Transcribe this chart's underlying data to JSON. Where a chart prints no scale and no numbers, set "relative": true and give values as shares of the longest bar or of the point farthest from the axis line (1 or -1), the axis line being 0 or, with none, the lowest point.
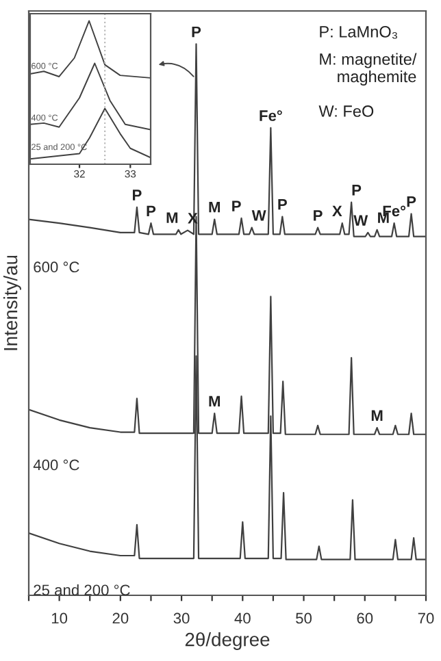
{
  "chart_data": [
    {
      "type": "line",
      "relative": true,
      "xlabel": "2θ/degree",
      "ylabel": "Intensity/au",
      "xlim": [
        5,
        70
      ],
      "xticks": [
        {
          "value": 5,
          "label": null
        },
        10,
        {
          "value": 15,
          "label": null
        },
        20,
        {
          "value": 25,
          "label": null
        },
        30,
        {
          "value": 35,
          "label": null
        },
        40,
        {
          "value": 45,
          "label": null
        },
        50,
        {
          "value": 55,
          "label": null
        },
        60,
        {
          "value": 65,
          "label": null
        },
        70
      ],
      "series": [
        {
          "name": "600 °C",
          "color": "#404040",
          "x": [
            5,
            10,
            15,
            20,
            22.3,
            22.7,
            23.1,
            24.6,
            25,
            25.4,
            29.1,
            29.5,
            29.9,
            31,
            32.0,
            32.4,
            32.8,
            35.0,
            35.4,
            35.8,
            39.4,
            39.8,
            40.2,
            41.1,
            41.5,
            41.9,
            44.2,
            44.6,
            45.0,
            46.1,
            46.5,
            46.9,
            51.9,
            52.3,
            52.7,
            55.9,
            56.3,
            56.7,
            57.4,
            57.8,
            58.2,
            60.1,
            60.5,
            60.9,
            61.6,
            62,
            62.4,
            64.4,
            64.8,
            65.2,
            67.2,
            67.6,
            68,
            70
          ],
          "values": [
            0.682,
            0.675,
            0.667,
            0.658,
            0.658,
            0.704,
            0.658,
            0.655,
            0.675,
            0.655,
            0.655,
            0.663,
            0.655,
            0.662,
            0.655,
            1.0,
            0.655,
            0.655,
            0.682,
            0.655,
            0.655,
            0.684,
            0.655,
            0.655,
            0.667,
            0.655,
            0.655,
            0.848,
            0.655,
            0.655,
            0.687,
            0.655,
            0.655,
            0.667,
            0.655,
            0.655,
            0.675,
            0.655,
            0.655,
            0.713,
            0.651,
            0.651,
            0.658,
            0.651,
            0.651,
            0.663,
            0.651,
            0.651,
            0.675,
            0.651,
            0.651,
            0.692,
            0.651,
            0.651
          ]
        },
        {
          "name": "400 °C",
          "color": "#404040",
          "x": [
            5,
            10,
            15,
            20,
            22.3,
            22.7,
            23.1,
            32.0,
            32.4,
            32.8,
            35.0,
            35.4,
            35.8,
            39.4,
            39.8,
            40.2,
            44.2,
            44.6,
            45.0,
            46.2,
            46.6,
            47.0,
            51.9,
            52.3,
            52.7,
            57.4,
            57.8,
            58.2,
            61.6,
            62,
            62.4,
            64.6,
            65,
            65.4,
            67.2,
            67.6,
            68,
            70
          ],
          "values": [
            0.337,
            0.318,
            0.304,
            0.296,
            0.296,
            0.357,
            0.294,
            0.294,
            0.687,
            0.294,
            0.294,
            0.33,
            0.294,
            0.294,
            0.361,
            0.294,
            0.294,
            0.542,
            0.294,
            0.294,
            0.388,
            0.292,
            0.292,
            0.308,
            0.292,
            0.292,
            0.431,
            0.292,
            0.292,
            0.304,
            0.292,
            0.292,
            0.308,
            0.292,
            0.292,
            0.33,
            0.292,
            0.292
          ]
        },
        {
          "name": "25 and 200 °C",
          "color": "#404040",
          "x": [
            5,
            10,
            15,
            20,
            22.3,
            22.7,
            23.1,
            32.0,
            32.4,
            32.8,
            39.6,
            40,
            40.4,
            44.2,
            44.6,
            45.0,
            46.3,
            46.7,
            47.1,
            52.1,
            52.5,
            52.9,
            57.6,
            58,
            58.4,
            64.6,
            65,
            65.4,
            67.6,
            68,
            68.4,
            70
          ],
          "values": [
            0.113,
            0.094,
            0.08,
            0.072,
            0.072,
            0.128,
            0.067,
            0.067,
            0.434,
            0.067,
            0.067,
            0.133,
            0.067,
            0.067,
            0.325,
            0.067,
            0.067,
            0.186,
            0.065,
            0.065,
            0.089,
            0.065,
            0.065,
            0.173,
            0.065,
            0.065,
            0.101,
            0.065,
            0.065,
            0.104,
            0.065,
            0.065
          ]
        }
      ],
      "annotations": [
        {
          "text": "P",
          "x": 22.7,
          "y": 0.704
        },
        {
          "text": "P",
          "x": 25,
          "y": 0.675
        },
        {
          "text": "M",
          "x": 29.5,
          "y": 0.663
        },
        {
          "text": "X",
          "x": 31,
          "y": 0.662
        },
        {
          "text": "P",
          "x": 32.4,
          "y": 1.0
        },
        {
          "text": "M",
          "x": 35.4,
          "y": 0.682
        },
        {
          "text": "P",
          "x": 39.8,
          "y": 0.684
        },
        {
          "text": "W",
          "x": 41.5,
          "y": 0.667
        },
        {
          "text": "Fe°",
          "x": 44.6,
          "y": 0.848
        },
        {
          "text": "P",
          "x": 46.5,
          "y": 0.687
        },
        {
          "text": "P",
          "x": 52.3,
          "y": 0.667
        },
        {
          "text": "X",
          "x": 56.3,
          "y": 0.675
        },
        {
          "text": "P",
          "x": 57.8,
          "y": 0.713
        },
        {
          "text": "W",
          "x": 60.5,
          "y": 0.658
        },
        {
          "text": "M",
          "x": 62,
          "y": 0.663
        },
        {
          "text": "Fe°",
          "x": 64.8,
          "y": 0.675
        },
        {
          "text": "P",
          "x": 67.6,
          "y": 0.692
        },
        {
          "text": "M",
          "x": 35.4,
          "y": 0.33
        },
        {
          "text": "M",
          "x": 62,
          "y": 0.304
        },
        "P: LaMnO₃",
        "M: magnetite/\n    maghemite",
        "W: FeO"
      ]
    },
    {
      "type": "line",
      "relative": true,
      "xlim": [
        31.03,
        33.4
      ],
      "xticks": [
        32,
        33
      ],
      "ref_lines": [
        {
          "axis": "x",
          "value": 32.5,
          "color": "#bbbbbb",
          "line_style": "dotted"
        }
      ],
      "series": [
        {
          "name": "600 °C",
          "color": "#404040",
          "x": [
            31.03,
            31.3,
            31.6,
            31.9,
            32.19,
            32.5,
            32.8,
            33.4
          ],
          "values": [
            0.63,
            0.648,
            0.611,
            0.741,
            1.0,
            0.694,
            0.62,
            0.602
          ]
        },
        {
          "name": "400 °C",
          "color": "#404040",
          "x": [
            31.03,
            31.3,
            31.6,
            32.0,
            32.3,
            32.6,
            32.9,
            33.4
          ],
          "values": [
            0.278,
            0.287,
            0.259,
            0.463,
            0.704,
            0.444,
            0.278,
            0.241
          ]
        },
        {
          "name": "25 and 200 °C",
          "color": "#404040",
          "x": [
            31.03,
            32.0,
            32.2,
            32.5,
            32.8,
            33.0,
            33.4
          ],
          "values": [
            0.037,
            0.074,
            0.185,
            0.389,
            0.213,
            0.111,
            0.046
          ]
        }
      ]
    }
  ]
}
